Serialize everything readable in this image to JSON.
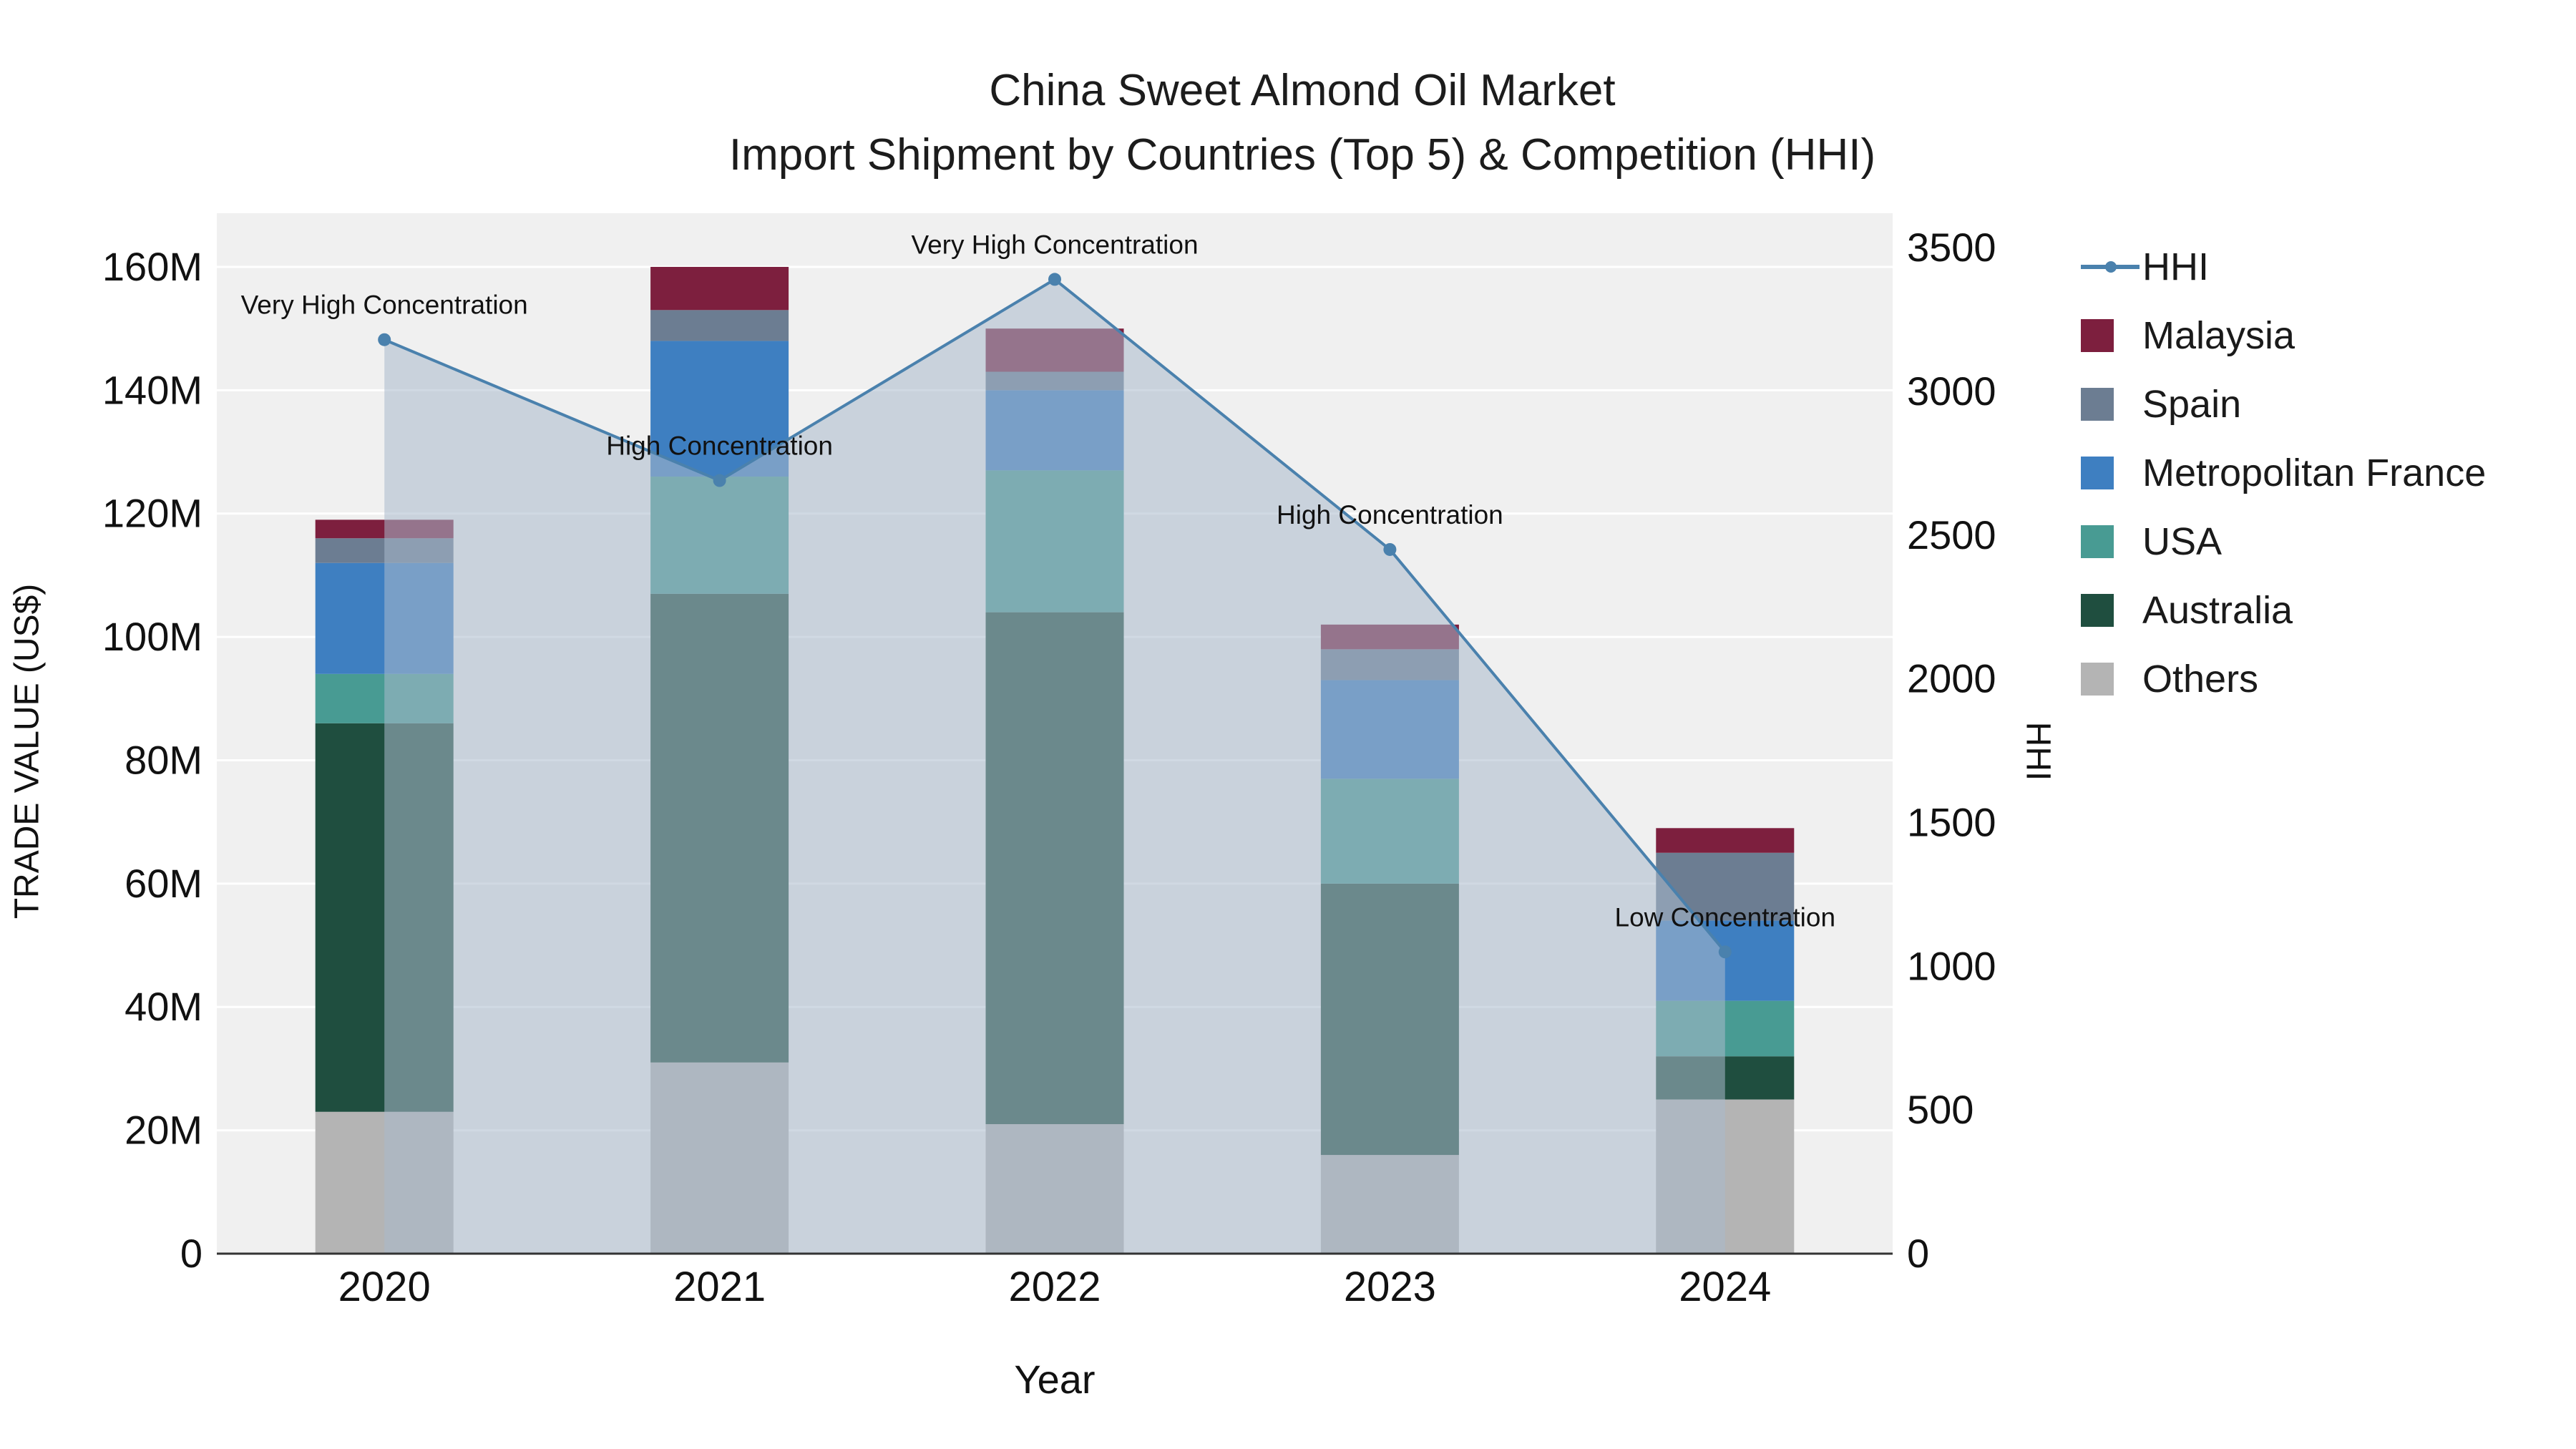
{
  "title": {
    "line1": "China Sweet Almond Oil Market",
    "line2": "Import Shipment by Countries (Top 5) & Competition (HHI)"
  },
  "chart_data": {
    "type": "bar",
    "subtype": "stacked-bar-with-line-area",
    "categories": [
      "2020",
      "2021",
      "2022",
      "2023",
      "2024"
    ],
    "values_unit": "M US$",
    "series": [
      {
        "name": "Others",
        "color": "#b4b4b4",
        "values": [
          23,
          31,
          21,
          16,
          25
        ]
      },
      {
        "name": "Australia",
        "color": "#1f4e3f",
        "values": [
          63,
          76,
          83,
          44,
          7
        ]
      },
      {
        "name": "USA",
        "color": "#489b93",
        "values": [
          8,
          19,
          23,
          17,
          9
        ]
      },
      {
        "name": "Metropolitan France",
        "color": "#3e7fc1",
        "values": [
          18,
          22,
          13,
          16,
          13
        ]
      },
      {
        "name": "Spain",
        "color": "#6c7d92",
        "values": [
          4,
          5,
          3,
          5,
          11
        ]
      },
      {
        "name": "Malaysia",
        "color": "#7d1f3e",
        "values": [
          3,
          7,
          7,
          4,
          4
        ]
      }
    ],
    "hhi": {
      "name": "HHI",
      "color": "#4a81ad",
      "area_color": "rgba(170,186,204,0.55)",
      "values": [
        3180,
        2690,
        3390,
        2450,
        1050
      ]
    },
    "annotations": [
      "Very High Concentration",
      "High Concentration",
      "Very High Concentration",
      "High Concentration",
      "Low Concentration"
    ],
    "xlabel": "Year",
    "ylabel": "TRADE VALUE (US$)",
    "y2label": "HHI",
    "y_ticks": [
      "0",
      "20M",
      "40M",
      "60M",
      "80M",
      "100M",
      "120M",
      "140M",
      "160M"
    ],
    "y_tick_values": [
      0,
      20,
      40,
      60,
      80,
      100,
      120,
      140,
      160
    ],
    "ylim": [
      0,
      168.7
    ],
    "y2_ticks": [
      0,
      500,
      1000,
      1500,
      2000,
      2500,
      3000,
      3500
    ],
    "y2lim": [
      0,
      3620
    ],
    "grid": true,
    "legend_position": "right-top",
    "legend": [
      "HHI",
      "Malaysia",
      "Spain",
      "Metropolitan France",
      "USA",
      "Australia",
      "Others"
    ]
  }
}
